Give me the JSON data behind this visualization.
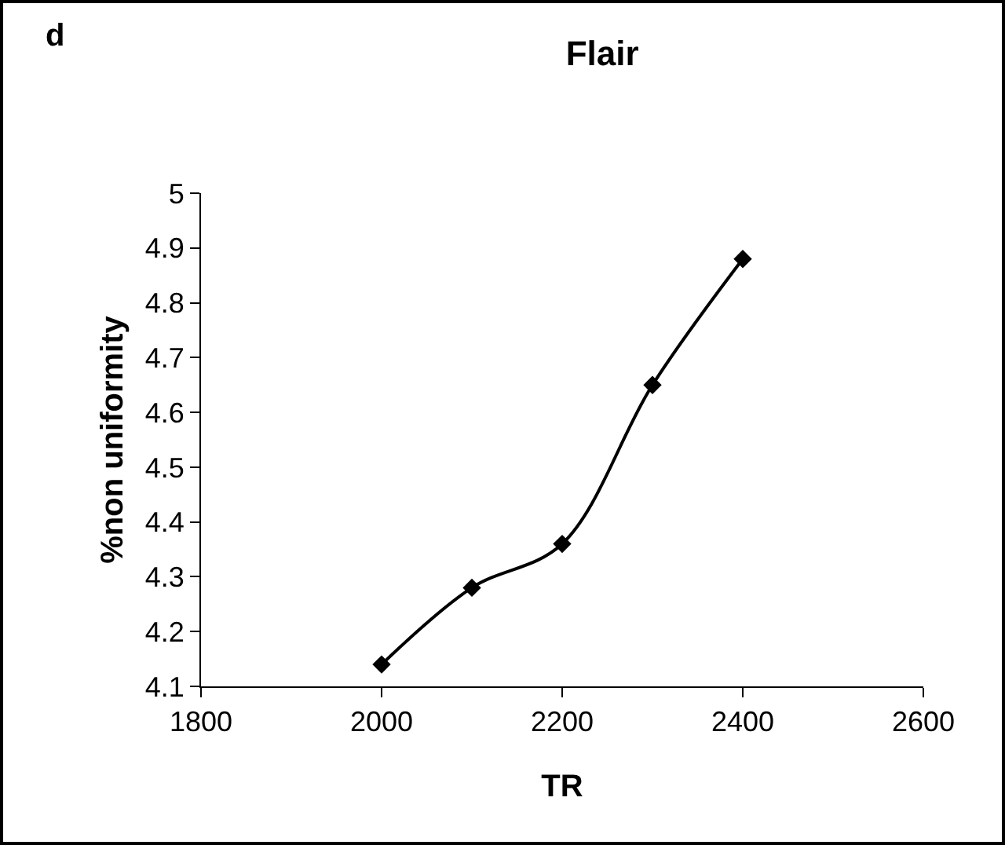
{
  "chart_data": {
    "type": "line",
    "title": "Flair",
    "xlabel": "TR",
    "ylabel": "%non uniformity",
    "annotations": [
      "d"
    ],
    "x": [
      2000,
      2100,
      2200,
      2300,
      2400
    ],
    "series": [
      {
        "color": "#000000",
        "values": [
          4.14,
          4.28,
          4.36,
          4.65,
          4.88
        ]
      }
    ],
    "xlim": [
      1800,
      2600
    ],
    "xticks": [
      1800,
      2000,
      2200,
      2400,
      2600
    ],
    "ylim": [
      4.1,
      5
    ],
    "yticks": [
      4.1,
      4.2,
      4.3,
      4.4,
      4.5,
      4.6,
      4.7,
      4.8,
      4.9,
      5
    ],
    "grid": false,
    "marker": "diamond",
    "line_style": "solid"
  }
}
